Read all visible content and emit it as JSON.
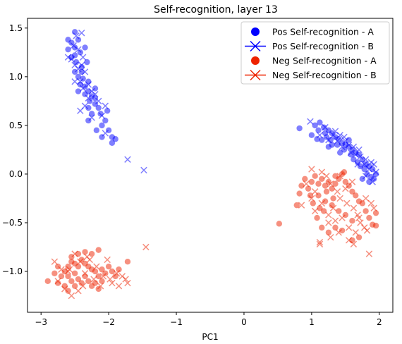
{
  "chart_data": {
    "type": "scatter",
    "title": "Self-recognition, layer 13",
    "xlabel": "PC1",
    "ylabel": "",
    "xlim": [
      -3.2,
      2.2
    ],
    "ylim": [
      -1.42,
      1.6
    ],
    "x_ticks": [
      -3,
      -2,
      -1,
      0,
      1,
      2
    ],
    "y_ticks": [
      -1.0,
      -0.5,
      0.0,
      0.5,
      1.0,
      1.5
    ],
    "x_tick_labels": [
      "−3",
      "−2",
      "−1",
      "0",
      "1",
      "2"
    ],
    "y_tick_labels": [
      "−1.0",
      "−0.5",
      "0.0",
      "0.5",
      "1.0",
      "1.5"
    ],
    "grid": false,
    "legend_position": "top-right",
    "series": [
      {
        "name": "Pos Self-recognition - A",
        "marker": "circle",
        "color": "#0000ff",
        "points": [
          [
            -2.5,
            1.46
          ],
          [
            -2.45,
            1.38
          ],
          [
            -2.55,
            1.35
          ],
          [
            -2.6,
            1.28
          ],
          [
            -2.5,
            1.3
          ],
          [
            -2.42,
            1.25
          ],
          [
            -2.55,
            1.2
          ],
          [
            -2.48,
            1.15
          ],
          [
            -2.4,
            1.1
          ],
          [
            -2.5,
            1.05
          ],
          [
            -2.45,
            1.0
          ],
          [
            -2.38,
            0.98
          ],
          [
            -2.42,
            0.92
          ],
          [
            -2.35,
            0.9
          ],
          [
            -2.3,
            0.85
          ],
          [
            -2.25,
            0.8
          ],
          [
            -2.35,
            0.82
          ],
          [
            -2.28,
            0.75
          ],
          [
            -2.2,
            0.72
          ],
          [
            -2.15,
            0.68
          ],
          [
            -2.3,
            0.68
          ],
          [
            -2.25,
            0.62
          ],
          [
            -2.12,
            0.62
          ],
          [
            -2.05,
            0.55
          ],
          [
            -2.1,
            0.5
          ],
          [
            -2.18,
            0.45
          ],
          [
            -2.0,
            0.45
          ],
          [
            -1.95,
            0.38
          ],
          [
            -1.9,
            0.36
          ],
          [
            -2.1,
            0.38
          ],
          [
            -1.95,
            0.32
          ],
          [
            -2.6,
            1.38
          ],
          [
            -2.35,
            1.3
          ],
          [
            -2.5,
            1.22
          ],
          [
            -2.32,
            1.15
          ],
          [
            -2.4,
            1.05
          ],
          [
            -2.3,
            0.95
          ],
          [
            -2.2,
            0.88
          ],
          [
            -2.45,
            0.85
          ],
          [
            -2.2,
            0.78
          ],
          [
            -2.3,
            0.55
          ],
          [
            -2.02,
            0.65
          ],
          [
            0.82,
            0.47
          ],
          [
            1.05,
            0.5
          ],
          [
            1.12,
            0.53
          ],
          [
            1.1,
            0.45
          ],
          [
            1.18,
            0.48
          ],
          [
            1.2,
            0.42
          ],
          [
            1.25,
            0.45
          ],
          [
            1.3,
            0.42
          ],
          [
            1.22,
            0.38
          ],
          [
            1.28,
            0.35
          ],
          [
            1.35,
            0.38
          ],
          [
            1.4,
            0.36
          ],
          [
            1.45,
            0.32
          ],
          [
            1.38,
            0.3
          ],
          [
            1.5,
            0.3
          ],
          [
            1.55,
            0.28
          ],
          [
            1.48,
            0.25
          ],
          [
            1.6,
            0.25
          ],
          [
            1.65,
            0.22
          ],
          [
            1.58,
            0.2
          ],
          [
            1.7,
            0.2
          ],
          [
            1.75,
            0.15
          ],
          [
            1.68,
            0.12
          ],
          [
            1.8,
            0.1
          ],
          [
            1.85,
            0.08
          ],
          [
            1.78,
            0.05
          ],
          [
            1.9,
            0.05
          ],
          [
            1.95,
            0.0
          ],
          [
            1.82,
            0.0
          ],
          [
            1.88,
            -0.03
          ],
          [
            1.75,
            -0.05
          ],
          [
            1.85,
            -0.08
          ],
          [
            1.15,
            0.35
          ],
          [
            1.3,
            0.3
          ],
          [
            1.42,
            0.22
          ],
          [
            1.62,
            0.15
          ],
          [
            1.72,
            0.08
          ],
          [
            1.0,
            0.4
          ],
          [
            1.08,
            0.36
          ],
          [
            1.55,
            0.35
          ],
          [
            1.25,
            0.28
          ],
          [
            1.92,
            -0.05
          ]
        ]
      },
      {
        "name": "Pos Self-recognition - B",
        "marker": "x",
        "color": "#0000ff",
        "points": [
          [
            -2.4,
            1.45
          ],
          [
            -2.48,
            1.42
          ],
          [
            -2.52,
            1.32
          ],
          [
            -2.45,
            1.28
          ],
          [
            -2.6,
            1.2
          ],
          [
            -2.38,
            1.2
          ],
          [
            -2.5,
            1.12
          ],
          [
            -2.4,
            1.12
          ],
          [
            -2.45,
            1.08
          ],
          [
            -2.35,
            1.05
          ],
          [
            -2.5,
            0.95
          ],
          [
            -2.42,
            0.95
          ],
          [
            -2.3,
            0.92
          ],
          [
            -2.38,
            0.88
          ],
          [
            -2.25,
            0.85
          ],
          [
            -2.3,
            0.78
          ],
          [
            -2.2,
            0.82
          ],
          [
            -2.15,
            0.75
          ],
          [
            -2.42,
            0.65
          ],
          [
            -2.35,
            0.7
          ],
          [
            -2.05,
            0.7
          ],
          [
            -2.1,
            0.6
          ],
          [
            -2.25,
            0.58
          ],
          [
            -2.55,
            1.18
          ],
          [
            -2.05,
            0.42
          ],
          [
            -1.72,
            0.15
          ],
          [
            -1.48,
            0.04
          ],
          [
            0.98,
            0.54
          ],
          [
            1.2,
            0.48
          ],
          [
            1.32,
            0.4
          ],
          [
            1.42,
            0.4
          ],
          [
            1.38,
            0.34
          ],
          [
            1.5,
            0.34
          ],
          [
            1.55,
            0.3
          ],
          [
            1.62,
            0.28
          ],
          [
            1.58,
            0.22
          ],
          [
            1.7,
            0.25
          ],
          [
            1.72,
            0.18
          ],
          [
            1.8,
            0.15
          ],
          [
            1.78,
            0.1
          ],
          [
            1.88,
            0.12
          ],
          [
            1.92,
            0.1
          ],
          [
            1.85,
            0.05
          ],
          [
            1.95,
            0.02
          ],
          [
            1.8,
            -0.02
          ],
          [
            1.9,
            -0.08
          ],
          [
            1.12,
            0.4
          ],
          [
            1.25,
            0.35
          ],
          [
            1.45,
            0.28
          ],
          [
            1.65,
            0.2
          ],
          [
            1.35,
            0.44
          ],
          [
            1.48,
            0.38
          ],
          [
            1.68,
            0.1
          ]
        ]
      },
      {
        "name": "Neg Self-recognition - A",
        "marker": "circle",
        "color": "#ee2200",
        "points": [
          [
            -2.9,
            -1.1
          ],
          [
            -2.75,
            -1.12
          ],
          [
            -2.7,
            -1.05
          ],
          [
            -2.65,
            -1.0
          ],
          [
            -2.6,
            -0.95
          ],
          [
            -2.55,
            -0.9
          ],
          [
            -2.5,
            -0.92
          ],
          [
            -2.45,
            -0.95
          ],
          [
            -2.4,
            -0.88
          ],
          [
            -2.35,
            -0.92
          ],
          [
            -2.3,
            -0.95
          ],
          [
            -2.25,
            -0.98
          ],
          [
            -2.2,
            -1.0
          ],
          [
            -2.15,
            -1.05
          ],
          [
            -2.1,
            -0.98
          ],
          [
            -2.05,
            -1.02
          ],
          [
            -2.0,
            -0.95
          ],
          [
            -1.95,
            -1.0
          ],
          [
            -1.9,
            -1.05
          ],
          [
            -1.85,
            -0.98
          ],
          [
            -2.6,
            -1.05
          ],
          [
            -2.55,
            -1.1
          ],
          [
            -2.5,
            -1.15
          ],
          [
            -2.45,
            -1.08
          ],
          [
            -2.4,
            -1.12
          ],
          [
            -2.35,
            -1.05
          ],
          [
            -2.3,
            -1.1
          ],
          [
            -2.25,
            -1.15
          ],
          [
            -2.2,
            -1.12
          ],
          [
            -2.15,
            -1.18
          ],
          [
            -2.1,
            -1.1
          ],
          [
            -2.55,
            -0.85
          ],
          [
            -2.45,
            -0.82
          ],
          [
            -2.35,
            -0.8
          ],
          [
            -2.25,
            -0.82
          ],
          [
            -2.15,
            -0.78
          ],
          [
            -1.72,
            -0.9
          ],
          [
            -2.65,
            -1.15
          ],
          [
            -2.75,
            -0.95
          ],
          [
            -2.8,
            -1.02
          ],
          [
            -2.6,
            -1.2
          ],
          [
            -2.5,
            -1.02
          ],
          [
            0.52,
            -0.51
          ],
          [
            0.78,
            -0.32
          ],
          [
            0.82,
            -0.2
          ],
          [
            0.85,
            -0.12
          ],
          [
            0.9,
            -0.05
          ],
          [
            0.95,
            -0.15
          ],
          [
            1.0,
            -0.08
          ],
          [
            1.05,
            -0.02
          ],
          [
            1.1,
            -0.1
          ],
          [
            1.15,
            -0.05
          ],
          [
            1.2,
            -0.12
          ],
          [
            1.25,
            -0.08
          ],
          [
            1.3,
            -0.15
          ],
          [
            1.35,
            -0.1
          ],
          [
            1.4,
            -0.05
          ],
          [
            1.45,
            0.0
          ],
          [
            1.5,
            -0.08
          ],
          [
            1.55,
            -0.12
          ],
          [
            1.6,
            -0.18
          ],
          [
            1.65,
            -0.22
          ],
          [
            1.7,
            -0.28
          ],
          [
            1.75,
            -0.3
          ],
          [
            1.8,
            -0.38
          ],
          [
            1.85,
            -0.45
          ],
          [
            1.95,
            -0.4
          ],
          [
            1.9,
            -0.52
          ],
          [
            1.95,
            -0.53
          ],
          [
            1.1,
            -0.22
          ],
          [
            1.2,
            -0.28
          ],
          [
            1.3,
            -0.32
          ],
          [
            1.4,
            -0.38
          ],
          [
            1.5,
            -0.42
          ],
          [
            1.6,
            -0.48
          ],
          [
            1.08,
            -0.45
          ],
          [
            1.15,
            -0.55
          ],
          [
            1.25,
            -0.6
          ],
          [
            1.35,
            -0.55
          ],
          [
            1.45,
            -0.58
          ],
          [
            1.6,
            -0.68
          ],
          [
            1.7,
            -0.65
          ],
          [
            1.18,
            -0.38
          ],
          [
            1.35,
            -0.02
          ],
          [
            1.48,
            0.02
          ],
          [
            1.02,
            -0.3
          ],
          [
            0.98,
            -0.22
          ],
          [
            1.12,
            -0.35
          ],
          [
            1.22,
            -0.18
          ],
          [
            1.32,
            -0.25
          ]
        ]
      },
      {
        "name": "Neg Self-recognition - B",
        "marker": "x",
        "color": "#ee2200",
        "points": [
          [
            -2.8,
            -0.9
          ],
          [
            -2.7,
            -0.98
          ],
          [
            -2.6,
            -1.0
          ],
          [
            -2.5,
            -0.82
          ],
          [
            -2.42,
            -0.9
          ],
          [
            -2.35,
            -1.02
          ],
          [
            -2.28,
            -0.88
          ],
          [
            -2.18,
            -0.95
          ],
          [
            -2.08,
            -1.05
          ],
          [
            -1.98,
            -1.08
          ],
          [
            -1.88,
            -1.02
          ],
          [
            -1.8,
            -1.05
          ],
          [
            -1.85,
            -1.15
          ],
          [
            -1.95,
            -1.12
          ],
          [
            -2.55,
            -1.25
          ],
          [
            -2.65,
            -1.18
          ],
          [
            -2.75,
            -1.1
          ],
          [
            -2.45,
            -1.2
          ],
          [
            -2.38,
            -1.15
          ],
          [
            -2.22,
            -1.08
          ],
          [
            -2.12,
            -1.15
          ],
          [
            -2.02,
            -0.88
          ],
          [
            -1.75,
            -1.08
          ],
          [
            -1.72,
            -1.12
          ],
          [
            -1.45,
            -0.75
          ],
          [
            -2.58,
            -0.98
          ],
          [
            -2.32,
            -0.85
          ],
          [
            0.85,
            -0.32
          ],
          [
            0.92,
            -0.1
          ],
          [
            1.0,
            0.05
          ],
          [
            1.05,
            -0.18
          ],
          [
            1.15,
            0.02
          ],
          [
            1.22,
            -0.02
          ],
          [
            1.28,
            -0.1
          ],
          [
            1.38,
            -0.18
          ],
          [
            1.42,
            -0.25
          ],
          [
            1.52,
            -0.3
          ],
          [
            1.62,
            -0.35
          ],
          [
            1.68,
            -0.42
          ],
          [
            1.72,
            -0.5
          ],
          [
            1.78,
            -0.55
          ],
          [
            1.82,
            -0.58
          ],
          [
            1.85,
            -0.82
          ],
          [
            1.65,
            -0.6
          ],
          [
            1.55,
            -0.55
          ],
          [
            1.45,
            -0.45
          ],
          [
            1.35,
            -0.48
          ],
          [
            1.25,
            -0.42
          ],
          [
            1.15,
            -0.3
          ],
          [
            1.12,
            -0.7
          ],
          [
            1.12,
            -0.72
          ],
          [
            1.28,
            -0.65
          ],
          [
            1.4,
            -0.6
          ],
          [
            1.55,
            -0.68
          ],
          [
            1.62,
            -0.72
          ],
          [
            1.7,
            -0.45
          ],
          [
            1.8,
            -0.25
          ],
          [
            1.88,
            -0.3
          ],
          [
            1.92,
            -0.35
          ],
          [
            1.6,
            -0.08
          ],
          [
            1.5,
            -0.15
          ],
          [
            1.32,
            -0.35
          ],
          [
            1.25,
            -0.5
          ],
          [
            1.05,
            -0.38
          ],
          [
            1.0,
            -0.25
          ],
          [
            1.42,
            -0.02
          ]
        ]
      }
    ]
  }
}
